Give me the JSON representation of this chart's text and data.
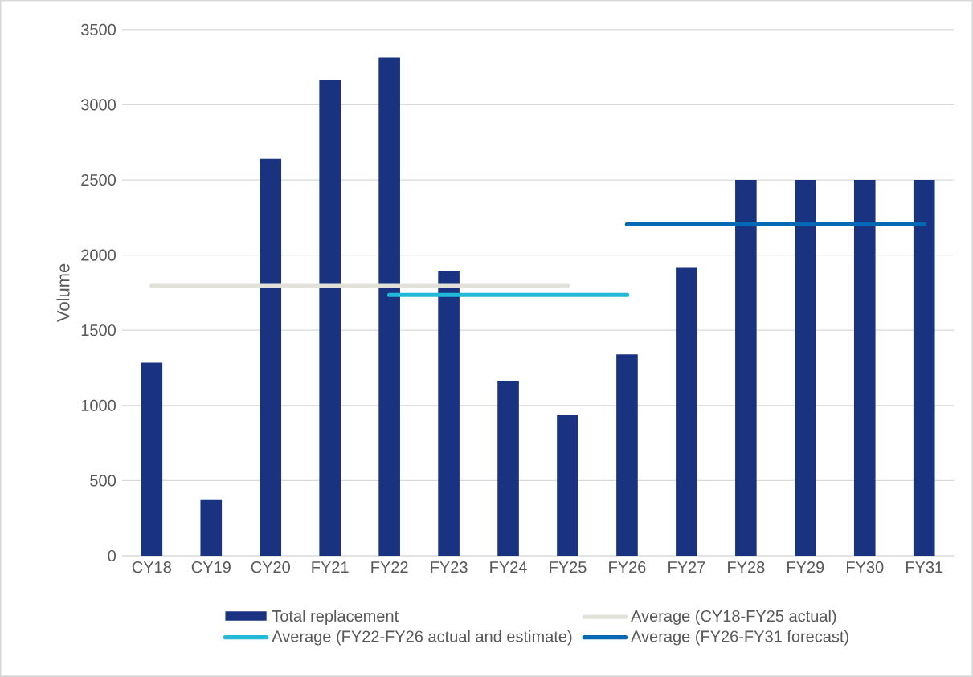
{
  "chart_data": {
    "type": "bar",
    "ylabel": "Volume",
    "categories": [
      "CY18",
      "CY19",
      "CY20",
      "FY21",
      "FY22",
      "FY23",
      "FY24",
      "FY25",
      "FY26",
      "FY27",
      "FY28",
      "FY29",
      "FY30",
      "FY31"
    ],
    "series": [
      {
        "name": "Total replacement",
        "color": "#193380",
        "values": [
          1285,
          375,
          2640,
          3165,
          3315,
          1895,
          1165,
          935,
          1340,
          1915,
          2500,
          2500,
          2500,
          2500
        ]
      },
      {
        "name": "Average (CY18-FY25 actual)",
        "type": "line",
        "color": "#e1e1d9",
        "values": [
          1795,
          1795,
          1795,
          1795,
          1795,
          1795,
          1795,
          1795,
          null,
          null,
          null,
          null,
          null,
          null
        ]
      },
      {
        "name": "Average (FY22-FY26 actual and estimate)",
        "type": "line",
        "color": "#22b9d9",
        "values": [
          null,
          null,
          null,
          null,
          1735,
          1735,
          1735,
          1735,
          1735,
          null,
          null,
          null,
          null,
          null
        ]
      },
      {
        "name": "Average (FY26-FY31 forecast)",
        "type": "line",
        "color": "#0369b5",
        "values": [
          null,
          null,
          null,
          null,
          null,
          null,
          null,
          null,
          2205,
          2205,
          2205,
          2205,
          2205,
          2205
        ]
      }
    ],
    "ylim": [
      0,
      3500
    ],
    "yticks": [
      0,
      500,
      1000,
      1500,
      2000,
      2500,
      3000,
      3500
    ],
    "grid": "y",
    "legend": "bottom"
  }
}
